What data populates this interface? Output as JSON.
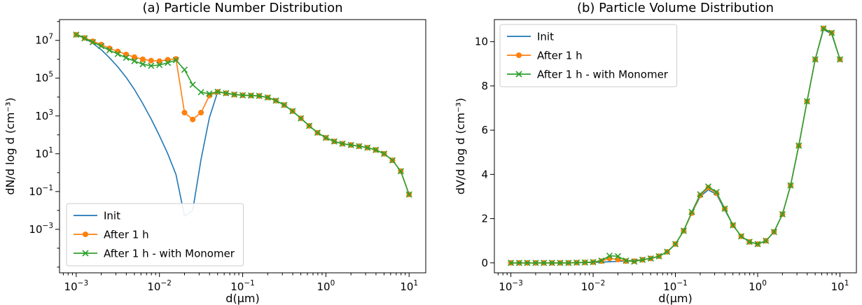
{
  "figure": {
    "background": "#ffffff"
  },
  "chart_data": [
    {
      "type": "line",
      "title": "(a) Particle Number Distribution",
      "xlabel": "d(μm)",
      "ylabel": "dN/d log d (cm⁻³)",
      "xscale": "log",
      "yscale": "log",
      "xlim": [
        0.00063,
        15.85
      ],
      "ylim": [
        5e-06,
        126000000
      ],
      "xticks": [
        0.001,
        0.01,
        0.1,
        1,
        10
      ],
      "yticks": [
        0.001,
        0.1,
        10,
        1000,
        100000,
        10000000
      ],
      "grid": false,
      "legend": {
        "position": "lower-left",
        "entries": [
          "Init",
          "After 1 h",
          "After 1 h - with Monomer"
        ]
      },
      "x": [
        0.001,
        0.00126,
        0.00158,
        0.002,
        0.00251,
        0.00316,
        0.00398,
        0.00501,
        0.00631,
        0.00794,
        0.01,
        0.0126,
        0.0158,
        0.02,
        0.0251,
        0.0316,
        0.0398,
        0.0501,
        0.0631,
        0.0794,
        0.1,
        0.126,
        0.158,
        0.2,
        0.251,
        0.316,
        0.398,
        0.501,
        0.631,
        0.794,
        1.0,
        1.26,
        1.58,
        2.0,
        2.51,
        3.16,
        3.98,
        5.01,
        6.31,
        7.94,
        10.0
      ],
      "series": [
        {
          "name": "Init",
          "color": "#1f77b4",
          "marker": "none",
          "values": [
            22000000,
            13000000,
            7000000,
            3200000,
            1200000,
            400000,
            110000,
            25000,
            4500,
            700,
            90,
            10,
            0.8,
            0.005,
            0.01,
            5,
            800,
            19000,
            16000,
            13500,
            12500,
            12000,
            11500,
            9500,
            6500,
            3800,
            1800,
            750,
            300,
            130,
            70,
            45,
            34,
            29,
            25,
            21,
            16,
            10,
            4.5,
            1.2,
            0.07
          ]
        },
        {
          "name": "After 1 h",
          "color": "#ff7f0e",
          "marker": "circle",
          "values": [
            20000000,
            13500000,
            9000000,
            6000000,
            3800000,
            2600000,
            1800000,
            1300000,
            1000000,
            850000,
            800000,
            950000,
            1050000,
            1500,
            650,
            1500,
            12000,
            19000,
            16000,
            13500,
            12500,
            12000,
            11500,
            9500,
            6500,
            3800,
            1800,
            750,
            300,
            130,
            70,
            45,
            34,
            29,
            25,
            21,
            16,
            10,
            4.5,
            1.2,
            0.07
          ]
        },
        {
          "name": "After 1 h - with Monomer",
          "color": "#2ca02c",
          "marker": "x",
          "values": [
            20000000,
            13000000,
            8000000,
            5000000,
            3000000,
            1900000,
            1200000,
            800000,
            550000,
            450000,
            500000,
            650000,
            900000,
            280000,
            45000,
            18000,
            15000,
            19000,
            16000,
            13500,
            12500,
            12000,
            11500,
            9500,
            6500,
            3800,
            1800,
            750,
            300,
            130,
            70,
            45,
            34,
            29,
            25,
            21,
            16,
            10,
            4.5,
            1.2,
            0.07
          ]
        }
      ]
    },
    {
      "type": "line",
      "title": "(b) Particle Volume Distribution",
      "xlabel": "d(μm)",
      "ylabel": "dV/d log d (cm⁻³)",
      "xscale": "log",
      "yscale": "linear",
      "xlim": [
        0.00063,
        15.85
      ],
      "ylim": [
        -0.45,
        11.0
      ],
      "xticks": [
        0.001,
        0.01,
        0.1,
        1,
        10
      ],
      "yticks": [
        0,
        2,
        4,
        6,
        8,
        10
      ],
      "grid": false,
      "legend": {
        "position": "upper-left",
        "entries": [
          "Init",
          "After 1 h",
          "After 1 h - with Monomer"
        ]
      },
      "x": [
        0.001,
        0.00126,
        0.00158,
        0.002,
        0.00251,
        0.00316,
        0.00398,
        0.00501,
        0.00631,
        0.00794,
        0.01,
        0.0126,
        0.0158,
        0.02,
        0.0251,
        0.0316,
        0.0398,
        0.0501,
        0.0631,
        0.0794,
        0.1,
        0.126,
        0.158,
        0.2,
        0.251,
        0.316,
        0.398,
        0.501,
        0.631,
        0.794,
        1.0,
        1.26,
        1.58,
        2.0,
        2.51,
        3.16,
        3.98,
        5.01,
        6.31,
        7.94,
        10.0
      ],
      "series": [
        {
          "name": "Init",
          "color": "#1f77b4",
          "marker": "none",
          "values": [
            0,
            0,
            0,
            0,
            0,
            0,
            0,
            0,
            0.01,
            0.01,
            0.02,
            0.03,
            0.05,
            0.07,
            0.09,
            0.11,
            0.14,
            0.2,
            0.3,
            0.5,
            0.85,
            1.45,
            2.25,
            3.0,
            3.3,
            3.1,
            2.4,
            1.7,
            1.2,
            0.95,
            0.85,
            1.0,
            1.4,
            2.2,
            3.5,
            5.3,
            7.3,
            9.2,
            10.55,
            10.35,
            9.2
          ]
        },
        {
          "name": "After 1 h",
          "color": "#ff7f0e",
          "marker": "circle",
          "values": [
            0,
            0,
            0,
            0,
            0,
            0,
            0,
            0,
            0.01,
            0.02,
            0.03,
            0.08,
            0.2,
            0.15,
            0.08,
            0.08,
            0.14,
            0.2,
            0.3,
            0.5,
            0.85,
            1.45,
            2.25,
            3.05,
            3.4,
            3.15,
            2.45,
            1.7,
            1.2,
            0.95,
            0.85,
            1.0,
            1.4,
            2.2,
            3.5,
            5.3,
            7.3,
            9.2,
            10.6,
            10.4,
            9.2
          ]
        },
        {
          "name": "After 1 h - with Monomer",
          "color": "#2ca02c",
          "marker": "x",
          "values": [
            0,
            0,
            0,
            0,
            0,
            0,
            0,
            0,
            0.01,
            0.02,
            0.04,
            0.1,
            0.32,
            0.3,
            0.1,
            0.06,
            0.14,
            0.2,
            0.3,
            0.5,
            0.85,
            1.45,
            2.3,
            3.1,
            3.45,
            3.2,
            2.45,
            1.7,
            1.2,
            0.95,
            0.85,
            1.0,
            1.4,
            2.2,
            3.5,
            5.3,
            7.3,
            9.2,
            10.6,
            10.4,
            9.2
          ]
        }
      ]
    }
  ]
}
